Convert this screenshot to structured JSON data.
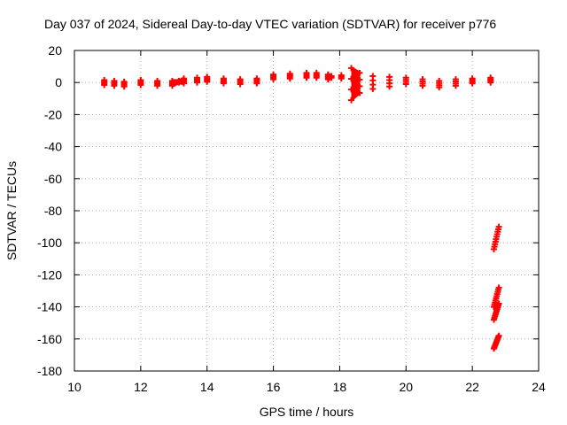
{
  "chart_data": {
    "type": "scatter",
    "title": "Day 037 of 2024, Sidereal Day-to-day VTEC variation (SDTVAR) for receiver p776",
    "xlabel": "GPS time / hours",
    "ylabel": "SDTVAR / TECUs",
    "xlim": [
      10,
      24
    ],
    "ylim": [
      -180,
      20
    ],
    "xticks": [
      10,
      12,
      14,
      16,
      18,
      20,
      22,
      24
    ],
    "yticks": [
      20,
      0,
      -20,
      -40,
      -60,
      -80,
      -100,
      -120,
      -140,
      -160,
      -180
    ],
    "grid": true,
    "marker_color": "#ff0000",
    "series": [
      {
        "name": "SDTVAR",
        "band_points": [
          {
            "x": 10.9,
            "y": -0.5,
            "lo": -1.5,
            "hi": 1.5
          },
          {
            "x": 11.2,
            "y": -0.5,
            "lo": -2.0,
            "hi": 1.0
          },
          {
            "x": 11.5,
            "y": -1.0,
            "lo": -2.5,
            "hi": 0.5
          },
          {
            "x": 12.0,
            "y": 0.0,
            "lo": -1.5,
            "hi": 1.5
          },
          {
            "x": 12.5,
            "y": -0.5,
            "lo": -2.0,
            "hi": 1.0
          },
          {
            "x": 12.95,
            "y": -0.5,
            "lo": -2.0,
            "hi": 1.0
          },
          {
            "x": 13.15,
            "y": 0.5,
            "lo": 0.0,
            "hi": 1.0
          },
          {
            "x": 13.3,
            "y": 1.0,
            "lo": -0.5,
            "hi": 2.5
          },
          {
            "x": 13.7,
            "y": 1.5,
            "lo": 0.0,
            "hi": 3.0
          },
          {
            "x": 14.0,
            "y": 2.0,
            "lo": 0.5,
            "hi": 3.5
          },
          {
            "x": 14.5,
            "y": 1.0,
            "lo": -0.5,
            "hi": 2.5
          },
          {
            "x": 15.0,
            "y": 0.5,
            "lo": -1.0,
            "hi": 2.0
          },
          {
            "x": 15.5,
            "y": 1.0,
            "lo": -0.5,
            "hi": 2.5
          },
          {
            "x": 16.0,
            "y": 3.5,
            "lo": 2.0,
            "hi": 5.0
          },
          {
            "x": 16.5,
            "y": 4.0,
            "lo": 2.5,
            "hi": 5.5
          },
          {
            "x": 17.0,
            "y": 4.5,
            "lo": 3.0,
            "hi": 6.0
          },
          {
            "x": 17.3,
            "y": 4.5,
            "lo": 3.0,
            "hi": 6.0
          },
          {
            "x": 17.65,
            "y": 3.5,
            "lo": 2.0,
            "hi": 5.0
          },
          {
            "x": 17.75,
            "y": 3.5,
            "lo": 3.0,
            "hi": 4.0
          },
          {
            "x": 18.05,
            "y": 3.5,
            "lo": 2.5,
            "hi": 4.5
          },
          {
            "x": 18.35,
            "y": 0.0,
            "lo": -11.0,
            "hi": 9.0
          },
          {
            "x": 18.6,
            "y": 0.0,
            "lo": -6.5,
            "hi": 6.0
          },
          {
            "x": 19.0,
            "y": 0.0,
            "lo": -4.0,
            "hi": 4.0
          },
          {
            "x": 19.5,
            "y": 0.5,
            "lo": -2.5,
            "hi": 3.5
          },
          {
            "x": 20.0,
            "y": 1.0,
            "lo": -1.0,
            "hi": 3.0
          },
          {
            "x": 20.5,
            "y": 0.0,
            "lo": -2.0,
            "hi": 2.0
          },
          {
            "x": 21.0,
            "y": -1.0,
            "lo": -3.0,
            "hi": 1.0
          },
          {
            "x": 21.5,
            "y": 0.0,
            "lo": -2.0,
            "hi": 2.0
          },
          {
            "x": 22.0,
            "y": 1.0,
            "lo": -0.5,
            "hi": 2.5
          },
          {
            "x": 22.55,
            "y": 1.5,
            "lo": 0.0,
            "hi": 3.0
          }
        ],
        "outlier_segments": [
          {
            "x_from": 22.65,
            "y_from": -104,
            "x_to": 22.8,
            "y_to": -90
          },
          {
            "x_from": 22.65,
            "y_from": -140,
            "x_to": 22.8,
            "y_to": -128
          },
          {
            "x_from": 22.65,
            "y_from": -148,
            "x_to": 22.8,
            "y_to": -138
          },
          {
            "x_from": 22.65,
            "y_from": -166,
            "x_to": 22.8,
            "y_to": -158
          }
        ]
      }
    ]
  }
}
